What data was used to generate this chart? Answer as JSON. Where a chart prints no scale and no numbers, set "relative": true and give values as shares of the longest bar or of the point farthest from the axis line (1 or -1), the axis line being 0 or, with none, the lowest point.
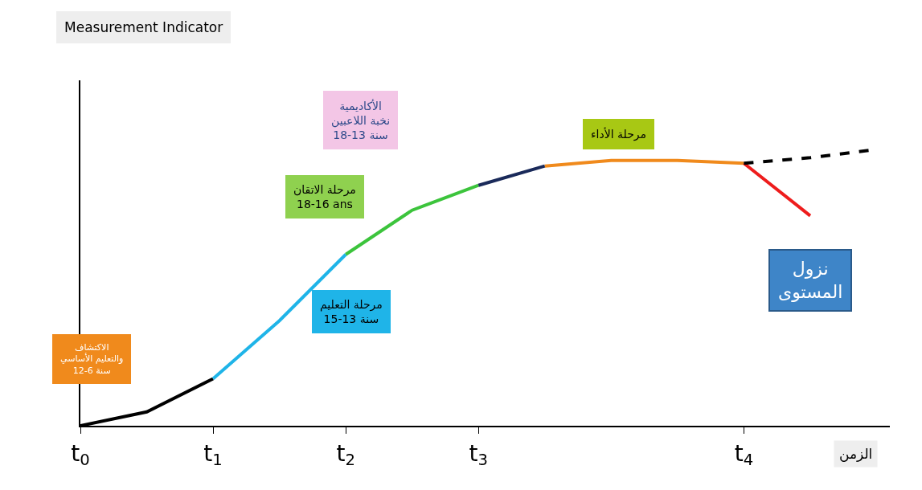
{
  "chart_data": {
    "type": "line",
    "relative": true,
    "xlabel": "الزمن",
    "categories": [
      "t$_{0}$",
      null,
      "t$_{1}$",
      null,
      "t$_{2}$",
      null,
      "t$_{3}$",
      null,
      null,
      null,
      "t$_{4}$",
      null,
      null
    ],
    "series": [
      {
        "color": "#000000",
        "values": [
          0,
          0.05,
          0.17,
          null,
          null,
          null,
          null,
          null,
          null,
          null,
          null,
          null,
          null
        ]
      },
      {
        "color": "#1fb4e8",
        "values": [
          null,
          null,
          0.17,
          0.38,
          0.62,
          null,
          null,
          null,
          null,
          null,
          null,
          null,
          null
        ]
      },
      {
        "color": "#3cc43c",
        "values": [
          null,
          null,
          null,
          null,
          0.62,
          0.78,
          0.87,
          null,
          null,
          null,
          null,
          null,
          null
        ]
      },
      {
        "color": "#1a2a5a",
        "values": [
          null,
          null,
          null,
          null,
          null,
          null,
          0.87,
          0.94,
          null,
          null,
          null,
          null,
          null
        ]
      },
      {
        "color": "#f08a1c",
        "values": [
          null,
          null,
          null,
          null,
          null,
          null,
          null,
          0.94,
          0.96,
          0.96,
          0.95,
          null,
          null
        ]
      },
      {
        "color": "#ee1c1c",
        "values": [
          null,
          null,
          null,
          null,
          null,
          null,
          null,
          null,
          null,
          null,
          0.95,
          0.76,
          null
        ]
      },
      {
        "color": "#000000",
        "values": [
          null,
          null,
          null,
          null,
          null,
          null,
          null,
          null,
          null,
          null,
          0.95,
          0.97,
          1.0
        ],
        "line_style": "dashed"
      }
    ],
    "annotations": [
      "Measurement Indicator",
      "الأكاديمية\nنخبة اللاعبين\n18-13 سنة",
      "مرحلة الاتقان\n18-16 ans",
      "مرحلة التعليم\n15-13 سنة",
      "الاكتشاف\nوالتعليم الأساسي\n12-6 سنة",
      "مرحلة الأداء",
      "نزول\nالمستوى"
    ],
    "line_style": "solid"
  }
}
